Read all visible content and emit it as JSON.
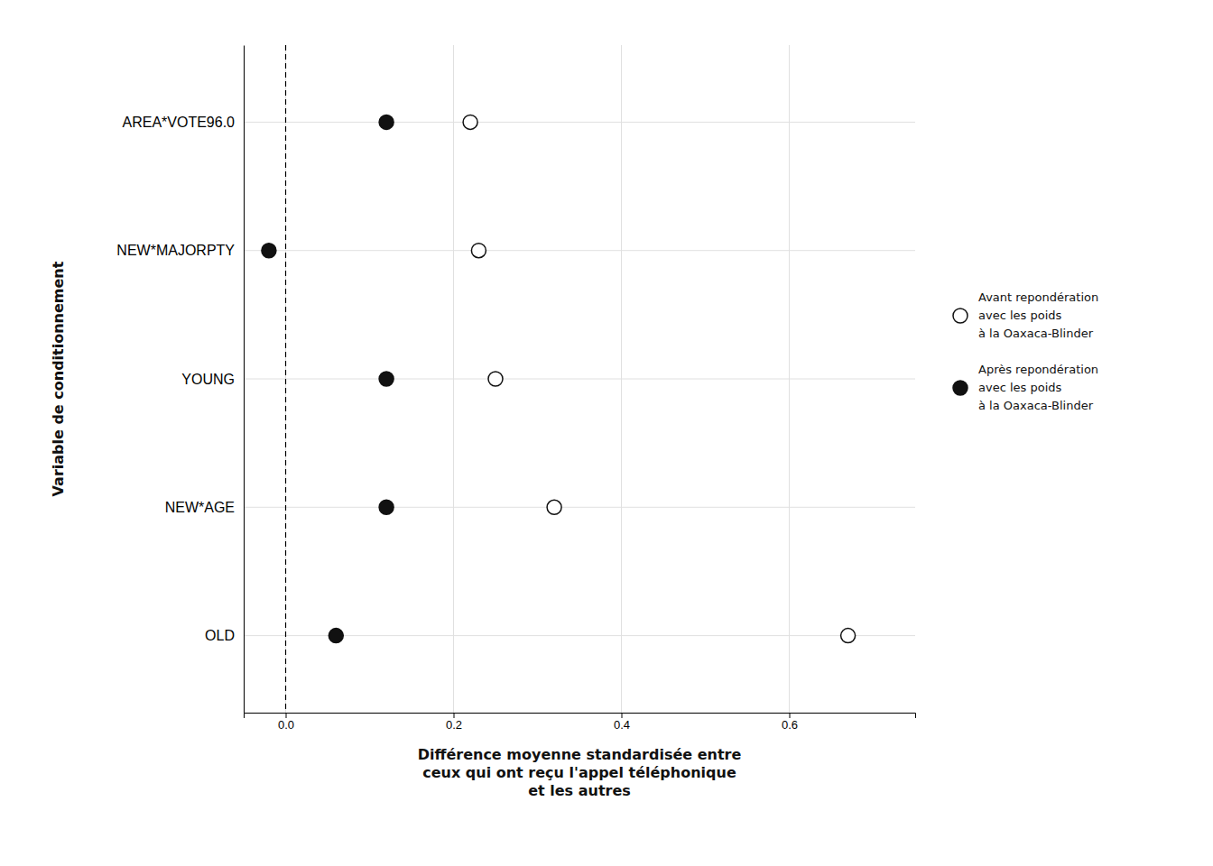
{
  "chart_data": {
    "type": "dot",
    "categories": [
      "AREA*VOTE96.0",
      "NEW*MAJORPTY",
      "YOUNG",
      "NEW*AGE",
      "OLD"
    ],
    "series": [
      {
        "name": "Avant repondération\navec les poids\nà la Oaxaca-Blinder",
        "marker": "open-circle",
        "color": "#111111",
        "values": [
          0.22,
          0.23,
          0.25,
          0.32,
          0.67
        ]
      },
      {
        "name": "Après repondération\navec les poids\nà la Oaxaca-Blinder",
        "marker": "circle",
        "color": "#111111",
        "values": [
          0.12,
          -0.02,
          0.12,
          0.12,
          0.06
        ]
      }
    ],
    "xlabel": "Différence moyenne standardisée entre\nceux qui ont reçu l'appel téléphonique\net les autres",
    "ylabel": "Variable de conditionnement",
    "xlim": [
      -0.05,
      0.75
    ],
    "xticks": [
      {
        "value": 0.0,
        "label": "0.0"
      },
      {
        "value": 0.2,
        "label": "0.2"
      },
      {
        "value": 0.4,
        "label": "0.4"
      },
      {
        "value": 0.6,
        "label": "0.6"
      }
    ],
    "grid": true,
    "legend": "right"
  }
}
